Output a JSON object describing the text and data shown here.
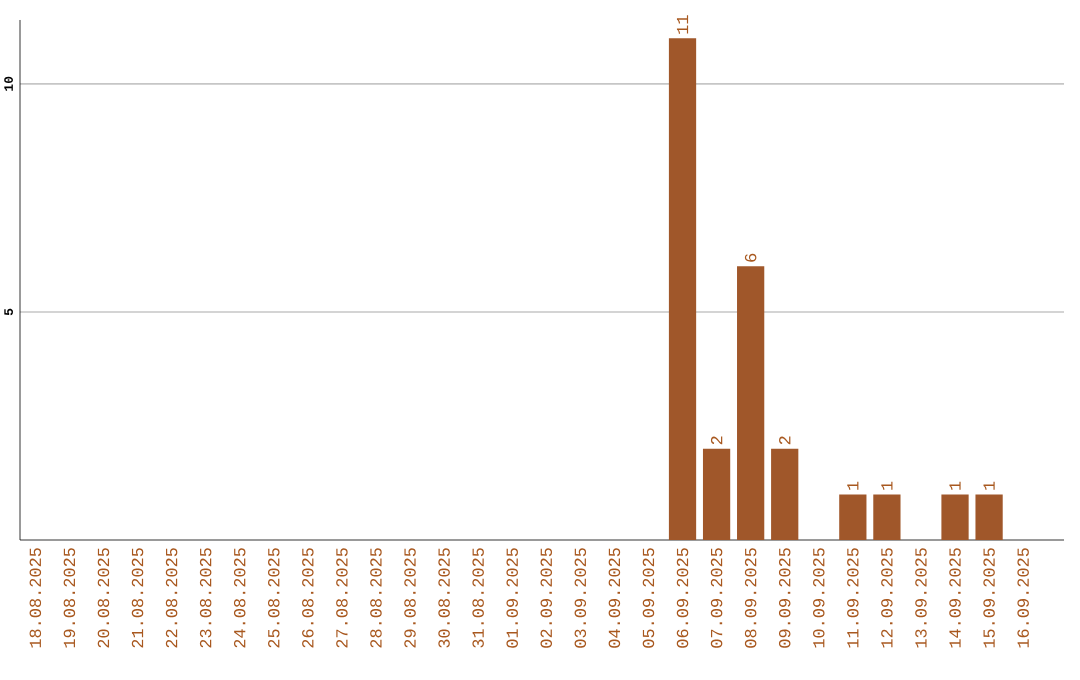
{
  "chart_data": {
    "type": "bar",
    "categories": [
      "18.08.2025",
      "19.08.2025",
      "20.08.2025",
      "21.08.2025",
      "22.08.2025",
      "23.08.2025",
      "24.08.2025",
      "25.08.2025",
      "26.08.2025",
      "27.08.2025",
      "28.08.2025",
      "29.08.2025",
      "30.08.2025",
      "31.08.2025",
      "01.09.2025",
      "02.09.2025",
      "03.09.2025",
      "04.09.2025",
      "05.09.2025",
      "06.09.2025",
      "07.09.2025",
      "08.09.2025",
      "09.09.2025",
      "10.09.2025",
      "11.09.2025",
      "12.09.2025",
      "13.09.2025",
      "14.09.2025",
      "15.09.2025",
      "16.09.2025"
    ],
    "values": [
      0,
      0,
      0,
      0,
      0,
      0,
      0,
      0,
      0,
      0,
      0,
      0,
      0,
      0,
      0,
      0,
      0,
      0,
      0,
      11,
      2,
      6,
      2,
      0,
      1,
      1,
      0,
      1,
      1,
      0
    ],
    "value_labels": [
      null,
      null,
      null,
      null,
      null,
      null,
      null,
      null,
      null,
      null,
      null,
      null,
      null,
      null,
      null,
      null,
      null,
      null,
      null,
      "11",
      "2",
      "6",
      "2",
      null,
      "1",
      "1",
      null,
      "1",
      "1",
      null
    ],
    "color": "#a0572a",
    "ylim": [
      0,
      11.4
    ],
    "yticks": [
      5,
      10
    ],
    "grid": "y"
  }
}
